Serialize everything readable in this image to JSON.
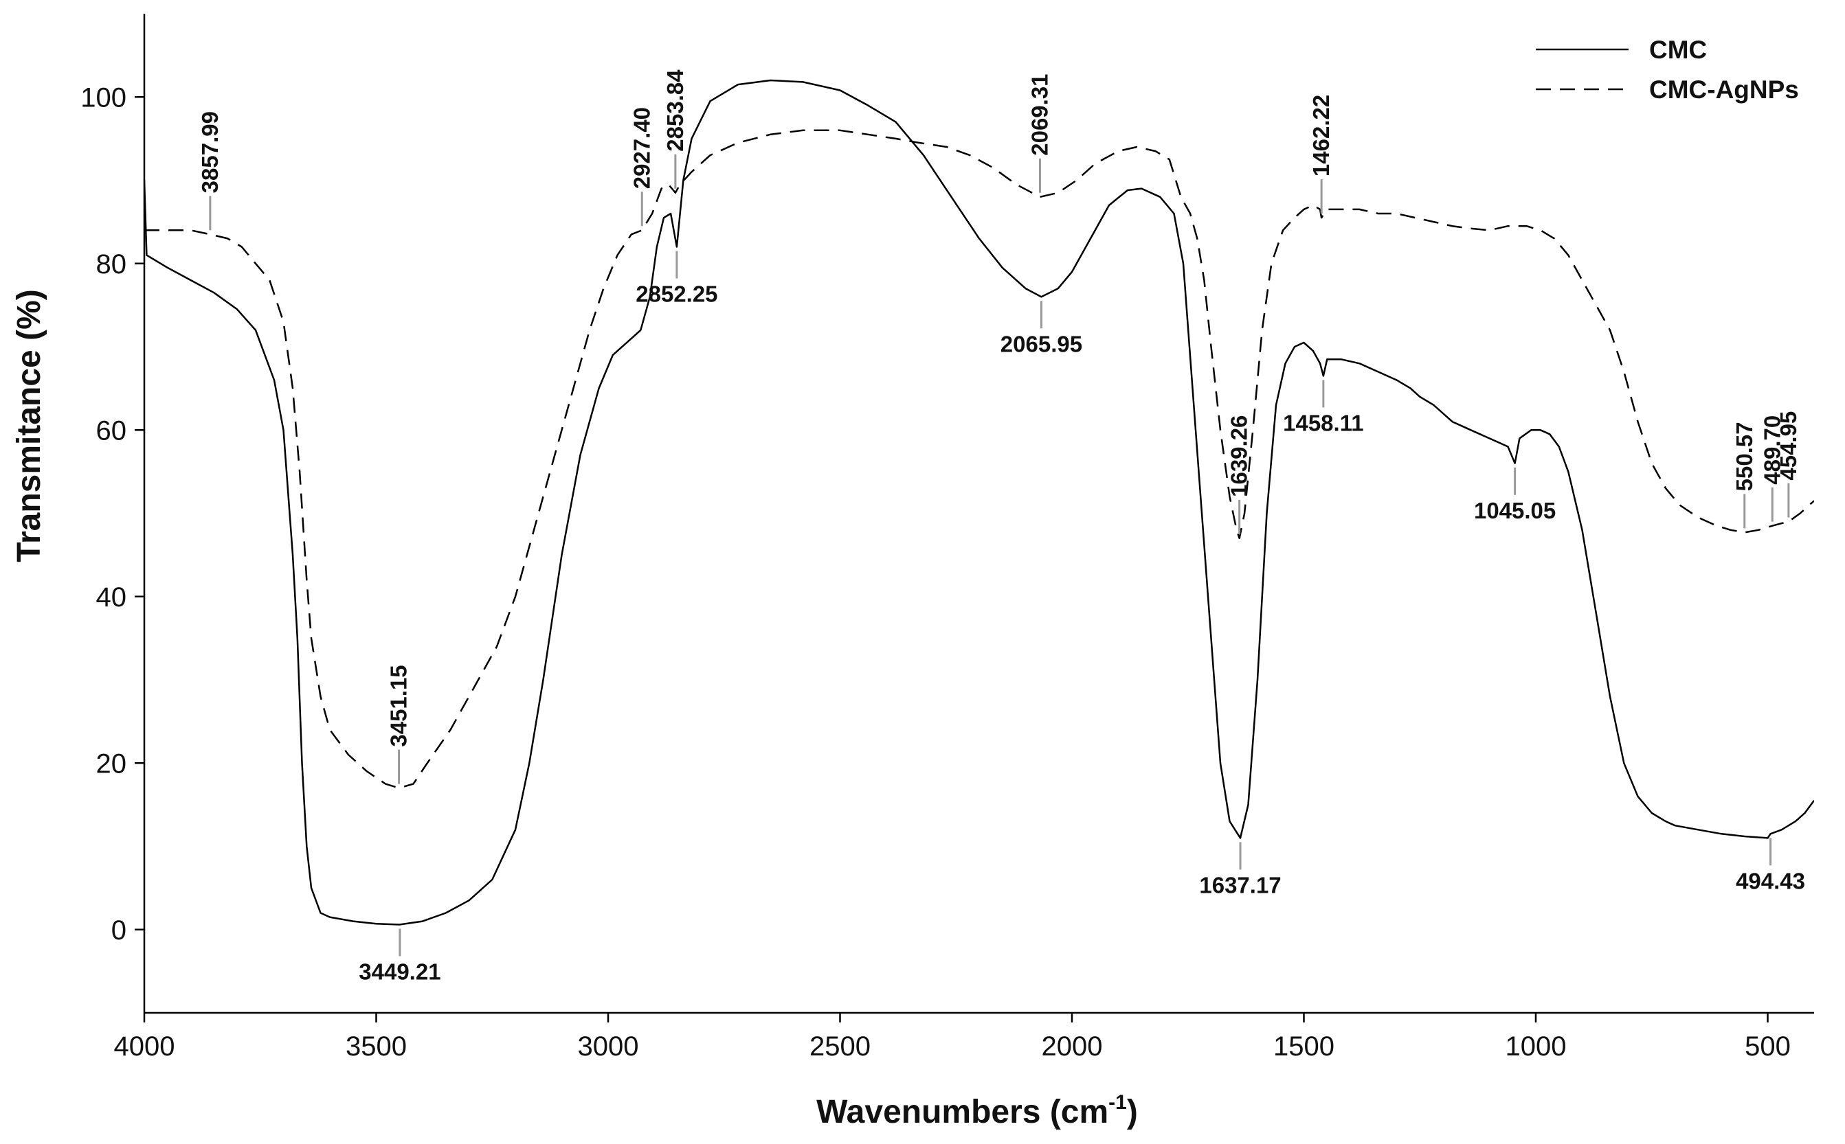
{
  "chart_data": {
    "type": "line",
    "xlabel": "Wavenumbers (cm",
    "xlabel_sup": "-1",
    "xlabel_end": ")",
    "ylabel": "Transmitance (%)",
    "xlim": [
      4000,
      400
    ],
    "ylim": [
      -10,
      110
    ],
    "x_ticks": [
      4000,
      3500,
      3000,
      2500,
      2000,
      1500,
      1000,
      500
    ],
    "x_tick_labels": [
      "4000",
      "3500",
      "3000",
      "2500",
      "2000",
      "1500",
      "1000",
      "500"
    ],
    "y_ticks": [
      0,
      20,
      40,
      60,
      80,
      100
    ],
    "y_tick_labels": [
      "0",
      "20",
      "40",
      "60",
      "80",
      "100"
    ],
    "legend": {
      "position": "top-right",
      "entries": [
        "CMC",
        "CMC-AgNPs"
      ]
    },
    "series": [
      {
        "name": "CMC",
        "style": "solid",
        "points": [
          [
            4000,
            90
          ],
          [
            3995,
            81
          ],
          [
            3950,
            79.5
          ],
          [
            3900,
            78
          ],
          [
            3850,
            76.5
          ],
          [
            3800,
            74.5
          ],
          [
            3760,
            72
          ],
          [
            3720,
            66
          ],
          [
            3700,
            60
          ],
          [
            3680,
            45
          ],
          [
            3670,
            35
          ],
          [
            3660,
            20
          ],
          [
            3650,
            10
          ],
          [
            3640,
            5
          ],
          [
            3620,
            2
          ],
          [
            3600,
            1.5
          ],
          [
            3550,
            1
          ],
          [
            3500,
            0.7
          ],
          [
            3450,
            0.6
          ],
          [
            3400,
            1
          ],
          [
            3350,
            2
          ],
          [
            3300,
            3.5
          ],
          [
            3250,
            6
          ],
          [
            3200,
            12
          ],
          [
            3170,
            20
          ],
          [
            3140,
            30
          ],
          [
            3100,
            45
          ],
          [
            3060,
            57
          ],
          [
            3020,
            65
          ],
          [
            2990,
            69
          ],
          [
            2950,
            71
          ],
          [
            2930,
            72
          ],
          [
            2910,
            76
          ],
          [
            2895,
            82
          ],
          [
            2880,
            85.5
          ],
          [
            2865,
            86
          ],
          [
            2852,
            82
          ],
          [
            2838,
            90
          ],
          [
            2820,
            95
          ],
          [
            2780,
            99.5
          ],
          [
            2720,
            101.5
          ],
          [
            2650,
            102
          ],
          [
            2580,
            101.8
          ],
          [
            2500,
            100.8
          ],
          [
            2440,
            99
          ],
          [
            2380,
            97
          ],
          [
            2320,
            93
          ],
          [
            2260,
            88
          ],
          [
            2200,
            83
          ],
          [
            2150,
            79.5
          ],
          [
            2100,
            77
          ],
          [
            2066,
            76
          ],
          [
            2030,
            77
          ],
          [
            2000,
            79
          ],
          [
            1960,
            83
          ],
          [
            1920,
            87
          ],
          [
            1880,
            88.8
          ],
          [
            1850,
            89
          ],
          [
            1810,
            88
          ],
          [
            1780,
            86
          ],
          [
            1760,
            80
          ],
          [
            1740,
            65
          ],
          [
            1720,
            50
          ],
          [
            1700,
            35
          ],
          [
            1680,
            20
          ],
          [
            1660,
            13
          ],
          [
            1637,
            11
          ],
          [
            1620,
            15
          ],
          [
            1600,
            30
          ],
          [
            1580,
            50
          ],
          [
            1560,
            63
          ],
          [
            1540,
            68
          ],
          [
            1520,
            70
          ],
          [
            1500,
            70.5
          ],
          [
            1480,
            69.5
          ],
          [
            1465,
            68
          ],
          [
            1458,
            66.5
          ],
          [
            1450,
            68.5
          ],
          [
            1420,
            68.5
          ],
          [
            1380,
            68
          ],
          [
            1340,
            67
          ],
          [
            1300,
            66
          ],
          [
            1270,
            65
          ],
          [
            1250,
            64
          ],
          [
            1220,
            63
          ],
          [
            1200,
            62
          ],
          [
            1180,
            61
          ],
          [
            1160,
            60.5
          ],
          [
            1140,
            60
          ],
          [
            1120,
            59.5
          ],
          [
            1100,
            59
          ],
          [
            1080,
            58.5
          ],
          [
            1060,
            58
          ],
          [
            1045,
            56
          ],
          [
            1035,
            59
          ],
          [
            1010,
            60
          ],
          [
            990,
            60
          ],
          [
            970,
            59.5
          ],
          [
            950,
            58
          ],
          [
            930,
            55
          ],
          [
            900,
            48
          ],
          [
            870,
            38
          ],
          [
            840,
            28
          ],
          [
            810,
            20
          ],
          [
            780,
            16
          ],
          [
            750,
            14
          ],
          [
            720,
            13
          ],
          [
            700,
            12.5
          ],
          [
            650,
            12
          ],
          [
            600,
            11.5
          ],
          [
            550,
            11.2
          ],
          [
            500,
            11
          ],
          [
            494,
            11.5
          ],
          [
            470,
            12
          ],
          [
            440,
            13
          ],
          [
            420,
            14
          ],
          [
            400,
            15.5
          ]
        ]
      },
      {
        "name": "CMC-AgNPs",
        "style": "dashed",
        "points": [
          [
            4000,
            84
          ],
          [
            3950,
            84
          ],
          [
            3900,
            84
          ],
          [
            3858,
            83.5
          ],
          [
            3820,
            83
          ],
          [
            3790,
            82
          ],
          [
            3760,
            80
          ],
          [
            3730,
            78
          ],
          [
            3700,
            73
          ],
          [
            3680,
            65
          ],
          [
            3665,
            55
          ],
          [
            3650,
            42
          ],
          [
            3640,
            35
          ],
          [
            3620,
            28
          ],
          [
            3600,
            24
          ],
          [
            3560,
            21
          ],
          [
            3520,
            19
          ],
          [
            3480,
            17.5
          ],
          [
            3451,
            17
          ],
          [
            3420,
            17.5
          ],
          [
            3390,
            20
          ],
          [
            3340,
            24
          ],
          [
            3290,
            29
          ],
          [
            3240,
            34
          ],
          [
            3200,
            40
          ],
          [
            3160,
            48
          ],
          [
            3120,
            56
          ],
          [
            3080,
            64
          ],
          [
            3040,
            72
          ],
          [
            3010,
            77
          ],
          [
            2980,
            81
          ],
          [
            2950,
            83.5
          ],
          [
            2927,
            84
          ],
          [
            2905,
            86
          ],
          [
            2885,
            89
          ],
          [
            2870,
            89.5
          ],
          [
            2855,
            88.5
          ],
          [
            2845,
            89.5
          ],
          [
            2820,
            91
          ],
          [
            2780,
            93
          ],
          [
            2720,
            94.5
          ],
          [
            2650,
            95.5
          ],
          [
            2580,
            96
          ],
          [
            2500,
            96
          ],
          [
            2440,
            95.5
          ],
          [
            2380,
            95
          ],
          [
            2330,
            94.5
          ],
          [
            2270,
            94
          ],
          [
            2220,
            93
          ],
          [
            2170,
            91.5
          ],
          [
            2120,
            89.5
          ],
          [
            2069,
            88
          ],
          [
            2030,
            88.5
          ],
          [
            1990,
            90
          ],
          [
            1950,
            92
          ],
          [
            1900,
            93.5
          ],
          [
            1860,
            94
          ],
          [
            1820,
            93.5
          ],
          [
            1790,
            92.5
          ],
          [
            1765,
            88
          ],
          [
            1745,
            86
          ],
          [
            1730,
            83
          ],
          [
            1715,
            78
          ],
          [
            1700,
            70
          ],
          [
            1680,
            60
          ],
          [
            1660,
            52
          ],
          [
            1645,
            48
          ],
          [
            1639,
            47
          ],
          [
            1628,
            50
          ],
          [
            1610,
            60
          ],
          [
            1590,
            72
          ],
          [
            1570,
            80
          ],
          [
            1545,
            84
          ],
          [
            1520,
            85.5
          ],
          [
            1500,
            86.5
          ],
          [
            1480,
            87
          ],
          [
            1465,
            86.5
          ],
          [
            1462,
            85.5
          ],
          [
            1450,
            86.5
          ],
          [
            1420,
            86.5
          ],
          [
            1380,
            86.5
          ],
          [
            1340,
            86
          ],
          [
            1300,
            86
          ],
          [
            1260,
            85.5
          ],
          [
            1220,
            85
          ],
          [
            1180,
            84.5
          ],
          [
            1140,
            84.2
          ],
          [
            1100,
            84
          ],
          [
            1060,
            84.5
          ],
          [
            1020,
            84.5
          ],
          [
            990,
            84
          ],
          [
            960,
            83
          ],
          [
            930,
            81
          ],
          [
            900,
            78
          ],
          [
            870,
            75
          ],
          [
            840,
            72
          ],
          [
            810,
            67
          ],
          [
            780,
            61
          ],
          [
            750,
            56
          ],
          [
            720,
            53
          ],
          [
            690,
            51
          ],
          [
            650,
            49.5
          ],
          [
            610,
            48.5
          ],
          [
            580,
            48
          ],
          [
            550,
            47.7
          ],
          [
            520,
            48
          ],
          [
            490,
            48.5
          ],
          [
            470,
            48.8
          ],
          [
            455,
            49
          ],
          [
            430,
            50
          ],
          [
            400,
            51.5
          ]
        ]
      }
    ],
    "annotations": [
      {
        "series": "CMC-AgNPs",
        "label": "3857.99",
        "x": 3858,
        "y": 83.5,
        "side": "above",
        "rotate": true
      },
      {
        "series": "CMC-AgNPs",
        "label": "2927.40",
        "x": 2927,
        "y": 84,
        "side": "above",
        "rotate": true
      },
      {
        "series": "CMC-AgNPs",
        "label": "2853.84",
        "x": 2855,
        "y": 88.5,
        "side": "above",
        "rotate": true
      },
      {
        "series": "CMC-AgNPs",
        "label": "2069.31",
        "x": 2069,
        "y": 88,
        "side": "above",
        "rotate": true
      },
      {
        "series": "CMC-AgNPs",
        "label": "1639.26",
        "x": 1639,
        "y": 47,
        "side": "above",
        "rotate": true
      },
      {
        "series": "CMC-AgNPs",
        "label": "1462.22",
        "x": 1462,
        "y": 85.5,
        "side": "above",
        "rotate": true
      },
      {
        "series": "CMC-AgNPs",
        "label": "3451.15",
        "x": 3451,
        "y": 17,
        "side": "above",
        "rotate": true
      },
      {
        "series": "CMC-AgNPs",
        "label": "550.57",
        "x": 550,
        "y": 47.7,
        "side": "above",
        "rotate": true
      },
      {
        "series": "CMC-AgNPs",
        "label": "489.70",
        "x": 490,
        "y": 48.5,
        "side": "above",
        "rotate": true
      },
      {
        "series": "CMC-AgNPs",
        "label": "454.95",
        "x": 455,
        "y": 49,
        "side": "above",
        "rotate": true
      },
      {
        "series": "CMC",
        "label": "2852.25",
        "x": 2852,
        "y": 82,
        "side": "below",
        "rotate": false
      },
      {
        "series": "CMC",
        "label": "2065.95",
        "x": 2066,
        "y": 76,
        "side": "below",
        "rotate": false
      },
      {
        "series": "CMC",
        "label": "1458.11",
        "x": 1458,
        "y": 66.5,
        "side": "below",
        "rotate": false
      },
      {
        "series": "CMC",
        "label": "1045.05",
        "x": 1045,
        "y": 56,
        "side": "below",
        "rotate": false
      },
      {
        "series": "CMC",
        "label": "3449.21",
        "x": 3449,
        "y": 0.6,
        "side": "below",
        "rotate": false
      },
      {
        "series": "CMC",
        "label": "1637.17",
        "x": 1637,
        "y": 11,
        "side": "below",
        "rotate": false
      },
      {
        "series": "CMC",
        "label": "494.43",
        "x": 494,
        "y": 11.5,
        "side": "below",
        "rotate": false
      }
    ]
  }
}
